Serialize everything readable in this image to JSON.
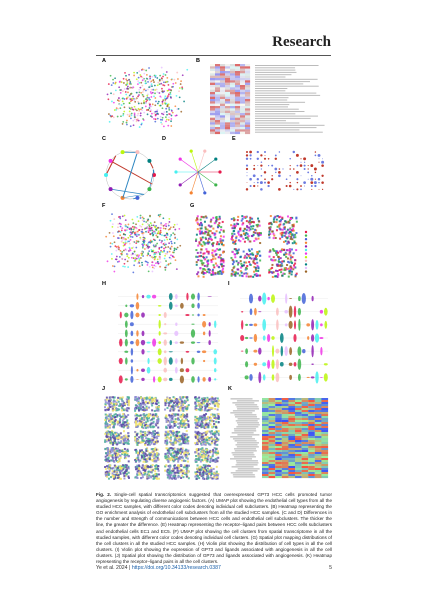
{
  "header": {
    "journal": "Research"
  },
  "figure": {
    "panels": [
      "A",
      "B",
      "C",
      "D",
      "E",
      "F",
      "G",
      "H",
      "I",
      "J",
      "K"
    ],
    "caption": {
      "label": "Fig. 2.",
      "text": "Single-cell spatial transcriptomics suggested that overexpressed GP73 HCC cells promoted tumor angiogenesis by regulating diverse angiogenic factors. (A) UMAP plot showing the endothelial cell types from all the studied HCC samples, with different color codes denoting individual cell subclusters. (B) Heatmap representing the GO enrichment analysis of endothelial cell subclusters from all the studied HCC samples. (C and D) Differences in the number and strength of communications between HCC cells and endothelial cell subclusters. The thicker the line, the greater the difference. (E) Heatmap representing the receptor–ligand pairs between HCC cells subclusters and endothelial cells EC1 and EC5. (F) UMAP plot showing the cell clusters from spatial transcriptome in all the studied samples, with different color codes denoting individual cell clusters. (G) Spatial plot mapping distributions of the cell clusters in all the studied HCC samples. (H) Violin plot showing the distribution of cell types in all the cell clusters. (I) Violin plot showing the expression of GP73 and ligands associated with angiogenesis in all the cell clusters. (J) Spatial plot showing the distribution of GP73 and ligands associated with angiogenesis. (K) Heatmap representing the receptor–ligand pairs in all the cell clusters."
    }
  },
  "footer": {
    "citation": "Ye et al. 2024",
    "separator": "|",
    "doi": "https://doi.org/10.34133/research.0387",
    "page": "5"
  }
}
